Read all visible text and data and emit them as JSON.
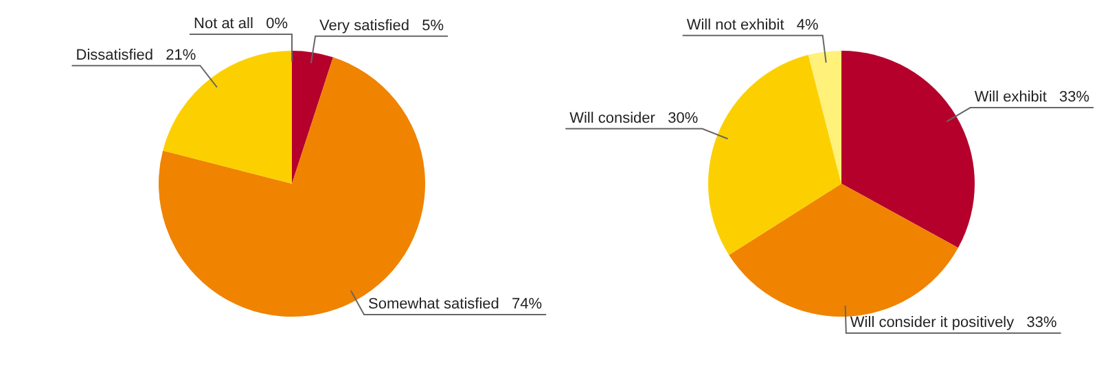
{
  "chart_data": [
    {
      "type": "pie",
      "categories": [
        "Very satisfied",
        "Somewhat satisfied",
        "Dissatisfied",
        "Not at all"
      ],
      "values": [
        5,
        74,
        21,
        0
      ],
      "value_labels": [
        "5%",
        "74%",
        "21%",
        "0%"
      ],
      "colors": [
        "#b5002c",
        "#f08300",
        "#fcd000",
        "#fff17a"
      ],
      "legend": false
    },
    {
      "type": "pie",
      "categories": [
        "Will exhibit",
        "Will consider it positively",
        "Will consider",
        "Will not exhibit"
      ],
      "values": [
        33,
        33,
        30,
        4
      ],
      "value_labels": [
        "33%",
        "33%",
        "30%",
        "4%"
      ],
      "colors": [
        "#b5002c",
        "#f08300",
        "#fcd000",
        "#fff17a"
      ],
      "legend": false
    }
  ]
}
